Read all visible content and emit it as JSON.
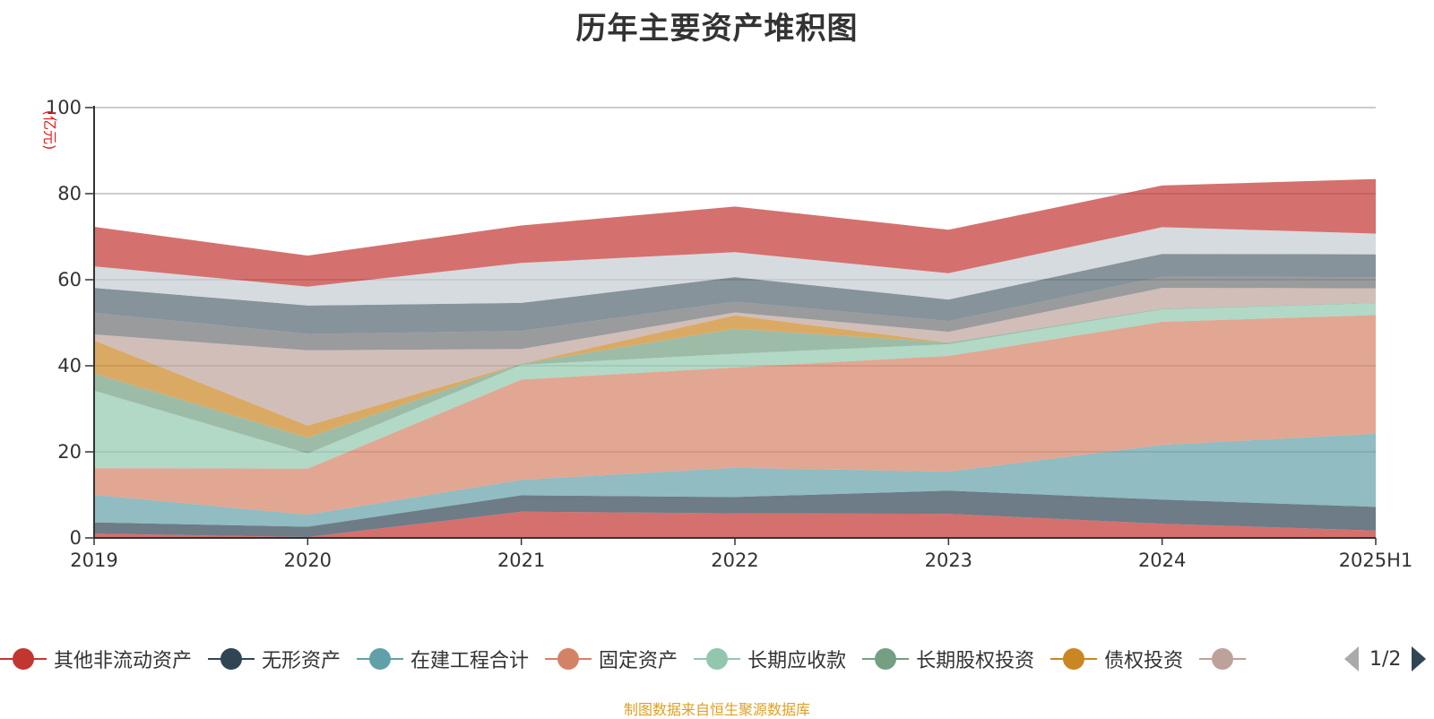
{
  "chart_data": {
    "type": "area",
    "stacked": true,
    "title": "历年主要资产堆积图",
    "ylabel": "(亿元)",
    "xlabel": "",
    "categories": [
      "2019",
      "2020",
      "2021",
      "2022",
      "2023",
      "2024",
      "2025H1"
    ],
    "ylim": [
      0,
      100
    ],
    "yticks": [
      0,
      20,
      40,
      60,
      80,
      100
    ],
    "grid": true,
    "legend_position": "bottom",
    "series": [
      {
        "name": "其他非流动资产",
        "color": "#c23531",
        "values": [
          1.0,
          0.2,
          6.1,
          5.7,
          5.6,
          3.3,
          1.7
        ]
      },
      {
        "name": "无形资产",
        "color": "#2f4554",
        "values": [
          2.6,
          2.4,
          3.8,
          3.8,
          5.4,
          5.6,
          5.5
        ]
      },
      {
        "name": "在建工程合计",
        "color": "#61a0a8",
        "values": [
          6.4,
          2.8,
          3.6,
          6.8,
          4.4,
          12.7,
          17.0
        ]
      },
      {
        "name": "固定资产",
        "color": "#d48265",
        "values": [
          6.2,
          10.7,
          23.3,
          23.3,
          26.9,
          28.6,
          27.6
        ]
      },
      {
        "name": "长期应收款",
        "color": "#91c7ae",
        "values": [
          18.0,
          3.5,
          3.4,
          3.2,
          2.7,
          2.9,
          2.7
        ]
      },
      {
        "name": "长期股权投资",
        "color": "#749f83",
        "values": [
          4.0,
          3.7,
          0.3,
          5.8,
          0.4,
          0.2,
          0.1
        ]
      },
      {
        "name": "债权投资",
        "color": "#ca8622",
        "values": [
          7.7,
          2.8,
          0.0,
          3.1,
          0.0,
          0.0,
          0.0
        ]
      },
      {
        "name": "",
        "color": "#bda29a",
        "values": [
          1.4,
          17.5,
          3.4,
          0.7,
          2.5,
          4.8,
          3.4
        ]
      },
      {
        "name": "",
        "color": "#6e7074",
        "values": [
          5.0,
          3.8,
          4.2,
          2.5,
          2.5,
          2.6,
          2.6
        ]
      },
      {
        "name": "",
        "color": "#546570",
        "values": [
          5.8,
          6.6,
          6.5,
          5.7,
          5.0,
          5.3,
          5.3
        ]
      },
      {
        "name": "",
        "color": "#c4ccd3",
        "values": [
          5.0,
          4.4,
          9.3,
          5.8,
          6.1,
          6.2,
          4.8
        ]
      },
      {
        "name": "",
        "color": "#c23531",
        "values": [
          9.2,
          7.2,
          8.7,
          10.6,
          10.1,
          9.7,
          12.7
        ]
      }
    ]
  },
  "legend": {
    "items": [
      {
        "label": "其他非流动资产",
        "color": "#c23531"
      },
      {
        "label": "无形资产",
        "color": "#2f4554"
      },
      {
        "label": "在建工程合计",
        "color": "#61a0a8"
      },
      {
        "label": "固定资产",
        "color": "#d48265"
      },
      {
        "label": "长期应收款",
        "color": "#91c7ae"
      },
      {
        "label": "长期股权投资",
        "color": "#749f83"
      },
      {
        "label": "债权投资",
        "color": "#ca8622"
      },
      {
        "label": "",
        "color": "#bda29a"
      }
    ],
    "page_indicator": "1/2"
  },
  "source_note": "制图数据来自恒生聚源数据库"
}
